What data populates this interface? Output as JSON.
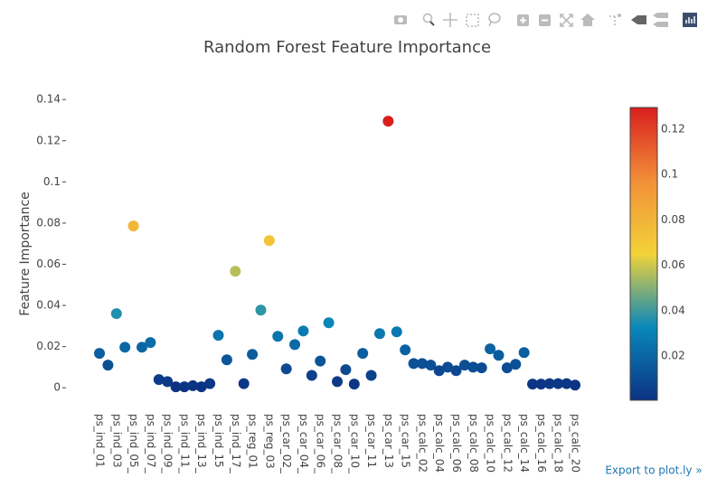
{
  "chart_data": {
    "type": "scatter",
    "title": "Random Forest Feature Importance",
    "y_label": "Feature Importance",
    "categories": [
      "ps_ind_01",
      null,
      "ps_ind_03",
      null,
      "ps_ind_05_",
      null,
      "ps_ind_07_",
      null,
      "ps_ind_09_",
      null,
      "ps_ind_11_",
      null,
      "ps_ind_13_",
      null,
      "ps_ind_15",
      null,
      "ps_ind_17_",
      null,
      "ps_reg_01",
      null,
      "ps_reg_03",
      null,
      "ps_car_02_",
      null,
      "ps_car_04_",
      null,
      "ps_car_06_",
      null,
      "ps_car_08_",
      null,
      "ps_car_10_",
      null,
      "ps_car_11",
      null,
      "ps_car_13",
      null,
      "ps_car_15",
      null,
      "ps_calc_02",
      null,
      "ps_calc_04",
      null,
      "ps_calc_06",
      null,
      "ps_calc_08",
      null,
      "ps_calc_10",
      null,
      "ps_calc_12",
      null,
      "ps_calc_14",
      null,
      "ps_calc_16",
      null,
      "ps_calc_18",
      null,
      "ps_calc_20"
    ],
    "values": [
      0.0167,
      0.011,
      0.036,
      0.0197,
      0.0786,
      0.0197,
      0.022,
      0.004,
      0.003,
      0.0005,
      0.0005,
      0.001,
      0.0005,
      0.002,
      0.0255,
      0.0136,
      0.0566,
      0.002,
      0.0162,
      0.0377,
      0.0715,
      0.025,
      0.0092,
      0.021,
      0.0276,
      0.006,
      0.013,
      0.0316,
      0.003,
      0.0088,
      0.0018,
      0.0167,
      0.006,
      0.0263,
      0.1295,
      0.0272,
      0.0184,
      0.0118,
      0.0118,
      0.011,
      0.0083,
      0.01,
      0.0083,
      0.011,
      0.01,
      0.0097,
      0.0189,
      0.0158,
      0.0097,
      0.0114,
      0.0171,
      0.0018,
      0.0018,
      0.002,
      0.002,
      0.002,
      0.0013
    ],
    "colorscale": [
      "#0c3383",
      "#0a88ba",
      "#f2d338",
      "#f28f38",
      "#d91e1e"
    ],
    "clim": [
      0.0005,
      0.1295
    ],
    "colorbar_ticks": [
      0.02,
      0.04,
      0.06,
      0.08,
      0.1,
      0.12
    ],
    "ylim": [
      -0.01,
      0.146
    ],
    "yticks": [
      0,
      0.02,
      0.04,
      0.06,
      0.08,
      0.1,
      0.12,
      0.14
    ],
    "grid": false
  },
  "export_link": "Export to plot.ly »"
}
